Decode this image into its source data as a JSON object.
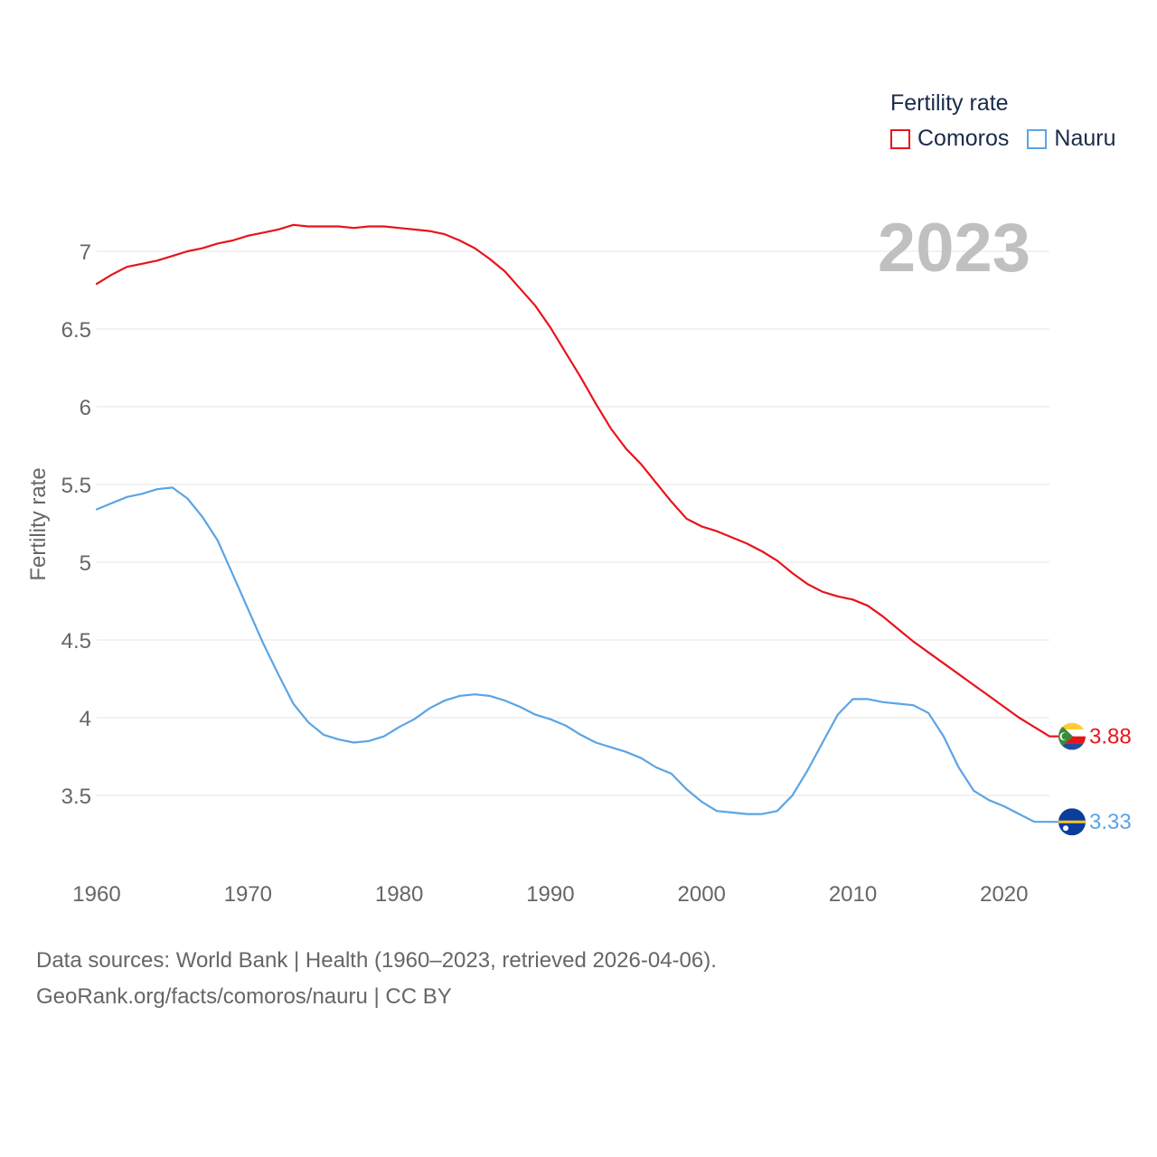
{
  "chart_data": {
    "type": "line",
    "title": "",
    "xlabel": "",
    "ylabel": "Fertility rate",
    "year_display": "2023",
    "xlim": [
      1960,
      2023
    ],
    "ylim": [
      3.1,
      7.3
    ],
    "x_ticks": [
      1960,
      1970,
      1980,
      1990,
      2000,
      2010,
      2020
    ],
    "y_ticks": [
      3.5,
      4,
      4.5,
      5,
      5.5,
      6,
      6.5,
      7
    ],
    "legend_title": "Fertility rate",
    "legend_position": "top-right",
    "x": [
      1960,
      1961,
      1962,
      1963,
      1964,
      1965,
      1966,
      1967,
      1968,
      1969,
      1970,
      1971,
      1972,
      1973,
      1974,
      1975,
      1976,
      1977,
      1978,
      1979,
      1980,
      1981,
      1982,
      1983,
      1984,
      1985,
      1986,
      1987,
      1988,
      1989,
      1990,
      1991,
      1992,
      1993,
      1994,
      1995,
      1996,
      1997,
      1998,
      1999,
      2000,
      2001,
      2002,
      2003,
      2004,
      2005,
      2006,
      2007,
      2008,
      2009,
      2010,
      2011,
      2012,
      2013,
      2014,
      2015,
      2016,
      2017,
      2018,
      2019,
      2020,
      2021,
      2022,
      2023
    ],
    "series": [
      {
        "name": "Comoros",
        "color": "#e8141b",
        "end_label": "3.88",
        "flag": "comoros-flag",
        "values": [
          6.79,
          6.85,
          6.9,
          6.92,
          6.94,
          6.97,
          7.0,
          7.02,
          7.05,
          7.07,
          7.1,
          7.12,
          7.14,
          7.17,
          7.16,
          7.16,
          7.16,
          7.15,
          7.16,
          7.16,
          7.15,
          7.14,
          7.13,
          7.11,
          7.07,
          7.02,
          6.95,
          6.87,
          6.76,
          6.65,
          6.51,
          6.35,
          6.19,
          6.02,
          5.86,
          5.73,
          5.63,
          5.51,
          5.39,
          5.28,
          5.23,
          5.2,
          5.16,
          5.12,
          5.07,
          5.01,
          4.93,
          4.86,
          4.81,
          4.78,
          4.76,
          4.72,
          4.65,
          4.57,
          4.49,
          4.42,
          4.35,
          4.28,
          4.21,
          4.14,
          4.07,
          4.0,
          3.94,
          3.88
        ]
      },
      {
        "name": "Nauru",
        "color": "#5ba4e5",
        "end_label": "3.33",
        "flag": "nauru-flag",
        "values": [
          5.34,
          5.38,
          5.42,
          5.44,
          5.47,
          5.48,
          5.41,
          5.29,
          5.14,
          4.92,
          4.7,
          4.48,
          4.28,
          4.09,
          3.97,
          3.89,
          3.86,
          3.84,
          3.85,
          3.88,
          3.94,
          3.99,
          4.06,
          4.11,
          4.14,
          4.15,
          4.14,
          4.11,
          4.07,
          4.02,
          3.99,
          3.95,
          3.89,
          3.84,
          3.81,
          3.78,
          3.74,
          3.68,
          3.64,
          3.54,
          3.46,
          3.4,
          3.39,
          3.38,
          3.38,
          3.4,
          3.5,
          3.66,
          3.84,
          4.02,
          4.12,
          4.12,
          4.1,
          4.09,
          4.08,
          4.03,
          3.88,
          3.68,
          3.53,
          3.47,
          3.43,
          3.38,
          3.33,
          3.33
        ]
      }
    ]
  },
  "footer": {
    "line1": "Data sources: World Bank | Health (1960–2023, retrieved 2026-04-06).",
    "line2": "GeoRank.org/facts/comoros/nauru | CC BY"
  }
}
